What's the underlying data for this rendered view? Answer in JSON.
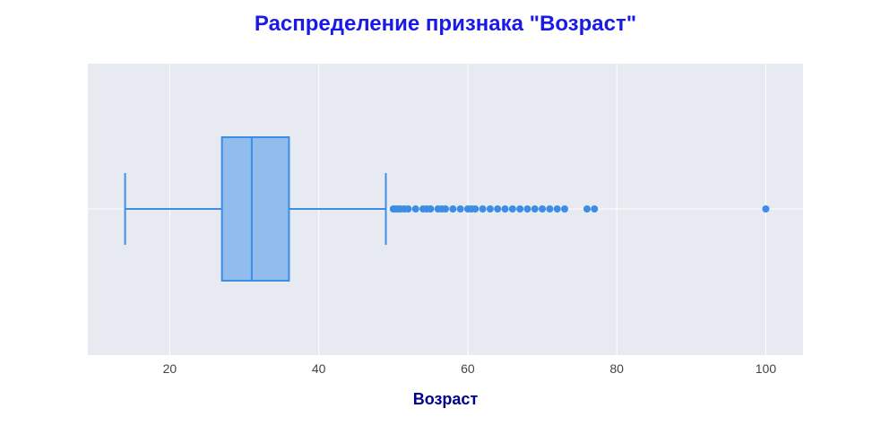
{
  "chart_data": {
    "type": "box",
    "title": "Распределение признака \"Возраст\"",
    "xlabel": "Возраст",
    "ylabel": "",
    "xlim": [
      9,
      105
    ],
    "xticks": [
      20,
      40,
      60,
      80,
      100
    ],
    "grid": true,
    "orientation": "horizontal",
    "box": {
      "lower_fence": 14,
      "q1": 27,
      "median": 31,
      "q3": 36,
      "upper_fence": 49
    },
    "outliers": [
      50,
      50.3,
      50.6,
      51,
      51.5,
      52,
      53,
      54,
      54.5,
      55,
      56,
      56.5,
      57,
      58,
      59,
      60,
      60.5,
      61,
      62,
      63,
      64,
      65,
      66,
      67,
      68,
      69,
      70,
      71,
      72,
      73,
      76,
      77,
      100
    ]
  },
  "colors": {
    "title": "#1a1ae6",
    "xlabel": "#00008b",
    "plot_bg": "#e8eaf2",
    "grid": "#ffffff",
    "box_fill": "#90bdee",
    "box_line": "#3b8de6",
    "marker": "#3b8de6"
  }
}
